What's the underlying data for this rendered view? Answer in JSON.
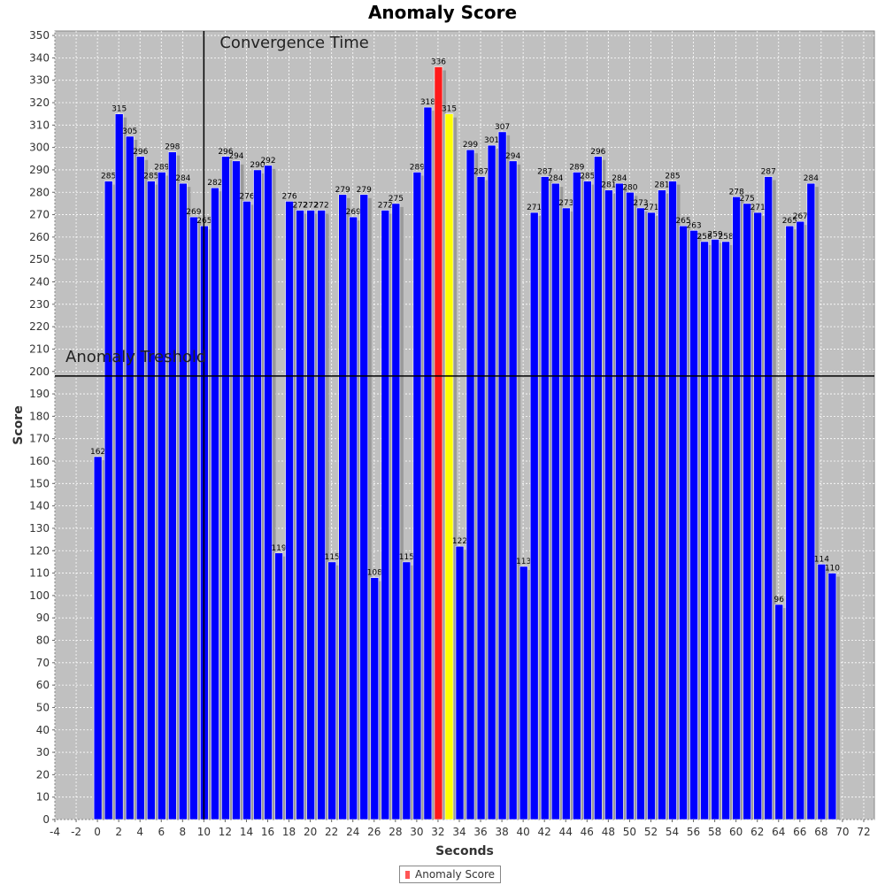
{
  "chart_data": {
    "type": "bar",
    "title": "Anomaly Score",
    "xlabel": "Seconds",
    "ylabel": "Score",
    "xlim": [
      -4,
      73
    ],
    "ylim": [
      0,
      352
    ],
    "x_ticks": [
      -4,
      -2,
      0,
      2,
      4,
      6,
      8,
      10,
      12,
      14,
      16,
      18,
      20,
      22,
      24,
      26,
      28,
      30,
      32,
      34,
      36,
      38,
      40,
      42,
      44,
      46,
      48,
      50,
      52,
      54,
      56,
      58,
      60,
      62,
      64,
      66,
      68,
      70,
      72
    ],
    "y_ticks": [
      0,
      10,
      20,
      30,
      40,
      50,
      60,
      70,
      80,
      90,
      100,
      110,
      120,
      130,
      140,
      150,
      160,
      170,
      180,
      190,
      200,
      210,
      220,
      230,
      240,
      250,
      260,
      270,
      280,
      290,
      300,
      310,
      320,
      330,
      340,
      350
    ],
    "grid": true,
    "legend_position": "bottom-center",
    "series": [
      {
        "name": "Anomaly Score",
        "x": [
          0,
          1,
          2,
          3,
          4,
          5,
          6,
          7,
          8,
          9,
          10,
          11,
          12,
          13,
          14,
          15,
          16,
          17,
          18,
          19,
          20,
          21,
          22,
          23,
          24,
          25,
          26,
          27,
          28,
          29,
          30,
          31,
          32,
          33,
          34,
          35,
          36,
          37,
          38,
          39,
          40,
          41,
          42,
          43,
          44,
          45,
          46,
          47,
          48,
          49,
          50,
          51,
          52,
          53,
          54,
          55,
          56,
          57,
          58,
          59,
          60,
          61,
          62,
          63,
          64,
          65,
          66,
          67,
          68,
          69
        ],
        "values": [
          162,
          285,
          315,
          305,
          296,
          285,
          289,
          298,
          284,
          269,
          265,
          282,
          296,
          294,
          276,
          290,
          292,
          119,
          276,
          272,
          272,
          272,
          115,
          279,
          269,
          279,
          108,
          272,
          275,
          115,
          289,
          318,
          336,
          315,
          122,
          299,
          287,
          301,
          307,
          294,
          113,
          271,
          287,
          284,
          273,
          289,
          285,
          296,
          281,
          284,
          280,
          273,
          271,
          281,
          285,
          265,
          263,
          258,
          259,
          258,
          278,
          275,
          271,
          287,
          96,
          265,
          267,
          284,
          114,
          110
        ],
        "labels": [
          "162",
          "285",
          "315",
          "305",
          "296",
          "285",
          "289",
          "298",
          "284",
          "269",
          "265",
          "282",
          "296",
          "294",
          "276",
          "290",
          "292",
          "119",
          "276",
          "272",
          "272",
          "272",
          "115",
          "279",
          "269",
          "279",
          "108",
          "272",
          "275",
          "115",
          "289",
          "318",
          "336",
          "315",
          "122",
          "299",
          "287",
          "301",
          "307",
          "294",
          "113",
          "271",
          "287",
          "284",
          "273",
          "289",
          "285",
          "296",
          "281",
          "284",
          "280",
          "273",
          "271",
          "281",
          "285",
          "265",
          "263",
          "258",
          "259",
          "258",
          "278",
          "275",
          "271",
          "287",
          "96",
          "265",
          "267",
          "284",
          "114",
          "110"
        ]
      }
    ],
    "bar_colors": {
      "default": "#0000ff",
      "highlight": "#ff1a1a",
      "secondary": "#ffff00",
      "shadow": "#9a9a9a"
    },
    "highlighted_x": 32,
    "secondary_x": 33,
    "annotations": [
      {
        "name": "Convergence Time",
        "axis": "x",
        "value": 10
      },
      {
        "name": "Anomaly Treshold",
        "axis": "y",
        "value": 198
      }
    ],
    "plot_background": "#c0c0c0",
    "legend": {
      "label": "Anomaly Score",
      "color": "#ff5555"
    }
  }
}
